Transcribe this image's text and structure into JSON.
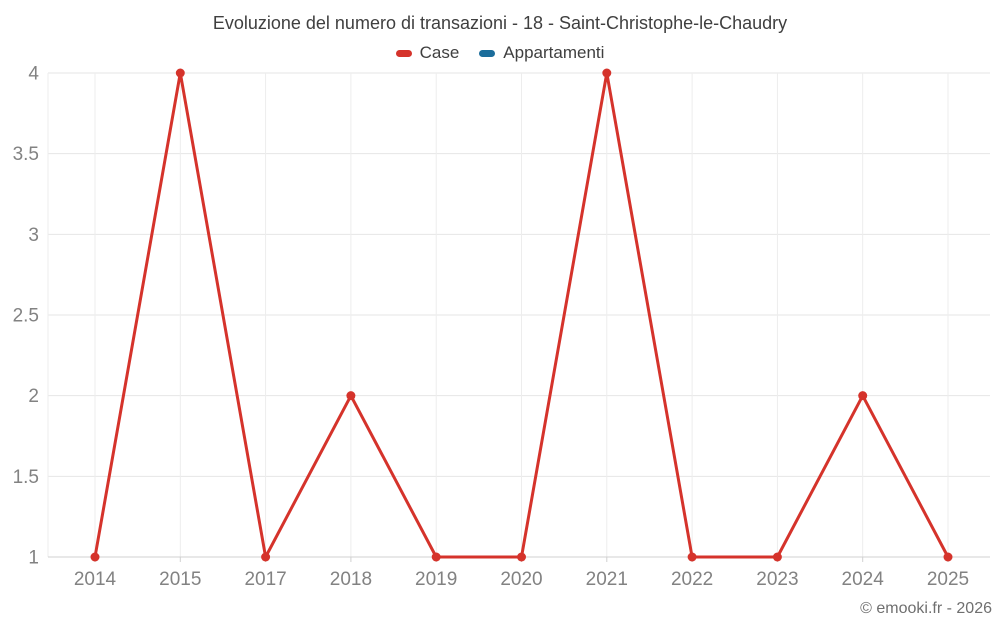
{
  "chart_data": {
    "type": "line",
    "title": "Evoluzione del numero di transazioni - 18 - Saint-Christophe-le-Chaudry",
    "xlabel": "",
    "ylabel": "",
    "categories": [
      "2014",
      "2015",
      "2017",
      "2018",
      "2019",
      "2020",
      "2021",
      "2022",
      "2023",
      "2024",
      "2025"
    ],
    "series": [
      {
        "name": "Case",
        "color": "#d5332b",
        "values": [
          1,
          4,
          1,
          2,
          1,
          1,
          4,
          1,
          1,
          2,
          1
        ]
      },
      {
        "name": "Appartamenti",
        "color": "#1b6d9b",
        "values": []
      }
    ],
    "ylim": [
      1,
      4
    ],
    "yticks": [
      1,
      1.5,
      2,
      2.5,
      3,
      3.5,
      4
    ],
    "grid": true,
    "legend_position": "top"
  },
  "footer": {
    "copyright": "© emooki.fr - 2026"
  },
  "style": {
    "grid_h_color": "#e6e6e6",
    "grid_v_color": "#ededed",
    "axis_color": "#d0d0d0",
    "tick_label_color": "#828282"
  }
}
